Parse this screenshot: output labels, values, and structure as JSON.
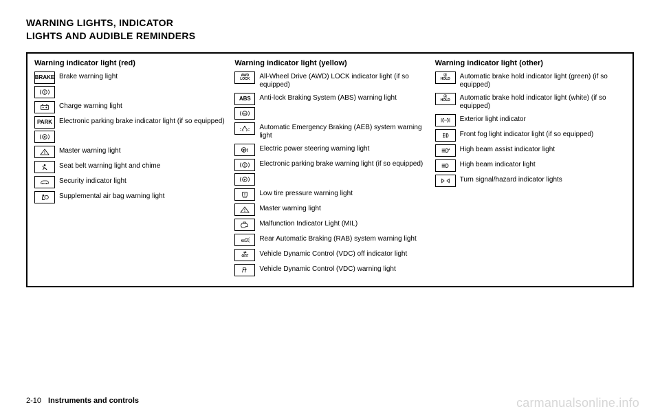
{
  "title_line1": "WARNING LIGHTS, INDICATOR",
  "title_line2": "LIGHTS AND AUDIBLE REMINDERS",
  "footer": {
    "page": "2-10",
    "section": "Instruments and controls"
  },
  "watermark": "carmanualsonline.info",
  "columns": [
    {
      "header": "Warning indicator light (red)",
      "items": [
        {
          "icon_text": "BRAKE",
          "desc": "Brake warning light"
        },
        {
          "icon_svg": "brake-circle",
          "desc": ""
        },
        {
          "icon_svg": "battery",
          "desc": "Charge warning light"
        },
        {
          "icon_text": "PARK",
          "desc": "Electronic parking brake indicator light (if so equipped)"
        },
        {
          "icon_svg": "p-circle",
          "desc": ""
        },
        {
          "icon_svg": "triangle-excl",
          "desc": "Master warning light"
        },
        {
          "icon_svg": "seatbelt",
          "desc": "Seat belt warning light and chime"
        },
        {
          "icon_svg": "car-key",
          "desc": "Security indicator light"
        },
        {
          "icon_svg": "airbag",
          "desc": "Supplemental air bag warning light"
        }
      ]
    },
    {
      "header": "Warning indicator light (yellow)",
      "items": [
        {
          "icon_stack": [
            "AWD",
            "LOCK"
          ],
          "desc": "All-Wheel Drive (AWD) LOCK indicator light (if so equipped)"
        },
        {
          "icon_text": "ABS",
          "desc": "Anti-lock Braking System (ABS) warning light"
        },
        {
          "icon_svg": "abs-circle",
          "desc": ""
        },
        {
          "icon_svg": "aeb",
          "desc": "Automatic Emergency Braking (AEB) system warning light"
        },
        {
          "icon_svg": "steering",
          "desc": "Electric power steering warning light"
        },
        {
          "icon_svg": "brake-circle",
          "desc": "Electronic parking brake warning light (if so equipped)"
        },
        {
          "icon_svg": "p-circle",
          "desc": ""
        },
        {
          "icon_svg": "tire",
          "desc": "Low tire pressure warning light"
        },
        {
          "icon_svg": "triangle-excl",
          "desc": "Master warning light"
        },
        {
          "icon_svg": "engine",
          "desc": "Malfunction Indicator Light (MIL)"
        },
        {
          "icon_svg": "rab",
          "desc": "Rear Automatic Braking (RAB) system warning light"
        },
        {
          "icon_stack": [
            "⇌",
            "OFF"
          ],
          "desc": "Vehicle Dynamic Control (VDC) off indicator light"
        },
        {
          "icon_svg": "vdc",
          "desc": "Vehicle Dynamic Control (VDC) warning light"
        }
      ]
    },
    {
      "header": "Warning indicator light (other)",
      "items": [
        {
          "icon_stack": [
            "Ⓐ",
            "HOLD"
          ],
          "desc": "Automatic brake hold indicator light (green) (if so equipped)"
        },
        {
          "icon_stack": [
            "Ⓐ",
            "HOLD"
          ],
          "desc": "Automatic brake hold indicator light (white) (if so equipped)"
        },
        {
          "icon_svg": "exterior-light",
          "desc": "Exterior light indicator"
        },
        {
          "icon_svg": "fog",
          "desc": "Front fog light indicator light (if so equipped)"
        },
        {
          "icon_svg": "highbeam-a",
          "desc": "High beam assist indicator light"
        },
        {
          "icon_svg": "highbeam",
          "desc": "High beam indicator light"
        },
        {
          "icon_svg": "turn",
          "desc": "Turn signal/hazard indicator lights"
        }
      ]
    }
  ]
}
